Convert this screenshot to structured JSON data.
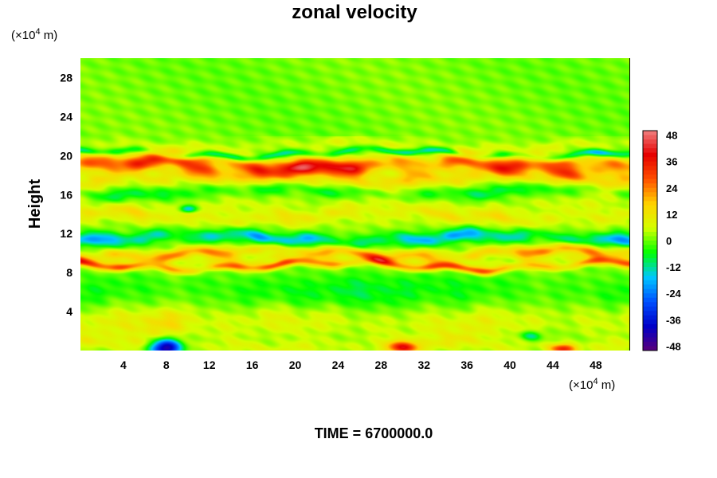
{
  "chart_data": {
    "type": "heatmap",
    "title": "zonal velocity",
    "ylabel": "Height",
    "xunit_prefix": "(×10",
    "xunit_exp": "4",
    "xunit_suffix": " m)",
    "yunit_prefix": "(×10",
    "yunit_exp": "4",
    "yunit_suffix": " m)",
    "xlim": [
      0,
      51.2
    ],
    "ylim": [
      0,
      30
    ],
    "xticks": [
      4,
      8,
      12,
      16,
      20,
      24,
      28,
      32,
      36,
      40,
      44,
      48
    ],
    "yticks": [
      4,
      8,
      12,
      16,
      20,
      24,
      28
    ],
    "colorbar": {
      "vmin": -50,
      "vmax": 50,
      "ticks": [
        48,
        36,
        24,
        12,
        0,
        -12,
        -24,
        -36,
        -48
      ],
      "colors": [
        "#5a007a",
        "#0000c8",
        "#0050ff",
        "#00c8ff",
        "#00ff00",
        "#d4ff00",
        "#ffd200",
        "#ff5000",
        "#e60000",
        "#f08080"
      ]
    },
    "field": {
      "background_value": 1,
      "bands": [
        {
          "y": 21.0,
          "w": 0.6,
          "v": 6
        },
        {
          "y": 20.2,
          "w": 0.35,
          "v": -18
        },
        {
          "y": 19.0,
          "w": 0.9,
          "v": 30
        },
        {
          "y": 17.6,
          "w": 0.9,
          "v": 15
        },
        {
          "y": 16.3,
          "w": 0.7,
          "v": -10
        },
        {
          "y": 15.0,
          "w": 1.0,
          "v": 5
        },
        {
          "y": 13.8,
          "w": 0.8,
          "v": 10
        },
        {
          "y": 12.8,
          "w": 0.7,
          "v": 2
        },
        {
          "y": 11.5,
          "w": 0.7,
          "v": -20
        },
        {
          "y": 10.0,
          "w": 0.6,
          "v": 22
        },
        {
          "y": 9.2,
          "w": 0.5,
          "v": 8
        },
        {
          "y": 8.7,
          "w": 0.4,
          "v": 26
        },
        {
          "y": 6.0,
          "w": 2.0,
          "v": -6
        },
        {
          "y": 3.0,
          "w": 1.8,
          "v": 8
        },
        {
          "y": 0.5,
          "w": 0.8,
          "v": 6
        }
      ],
      "blobs": [
        {
          "x": 8.0,
          "y": 0.3,
          "sx": 1.4,
          "sy": 0.9,
          "v": -48
        },
        {
          "x": 30.0,
          "y": 0.3,
          "sx": 1.5,
          "sy": 0.6,
          "v": 34
        },
        {
          "x": 45.0,
          "y": 0.2,
          "sx": 1.2,
          "sy": 0.5,
          "v": 30
        },
        {
          "x": 22.0,
          "y": 18.9,
          "sx": 6.0,
          "sy": 0.8,
          "v": 12
        },
        {
          "x": 46.0,
          "y": 19.4,
          "sx": 3.0,
          "sy": 0.6,
          "v": 12
        },
        {
          "x": 10.0,
          "y": 19.6,
          "sx": 3.0,
          "sy": 0.5,
          "v": 10
        },
        {
          "x": 10.0,
          "y": 14.5,
          "sx": 0.8,
          "sy": 0.4,
          "v": -26
        },
        {
          "x": 26.0,
          "y": 6.0,
          "sx": 5.0,
          "sy": 2.0,
          "v": -6
        },
        {
          "x": 8.0,
          "y": 3.0,
          "sx": 2.5,
          "sy": 1.5,
          "v": 8
        },
        {
          "x": 42.0,
          "y": 1.5,
          "sx": 1.0,
          "sy": 0.5,
          "v": -16
        }
      ]
    }
  },
  "footer": {
    "time_text": "TIME = 6700000.0"
  }
}
